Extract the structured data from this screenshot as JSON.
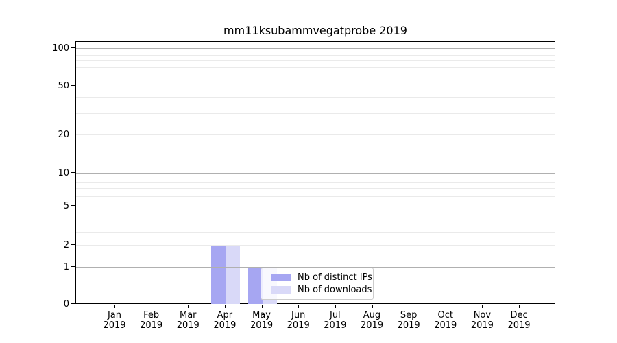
{
  "chart_data": {
    "type": "bar",
    "title": "mm11ksubammvegatprobe 2019",
    "categories": [
      "Jan",
      "Feb",
      "Mar",
      "Apr",
      "May",
      "Jun",
      "Jul",
      "Aug",
      "Sep",
      "Oct",
      "Nov",
      "Dec"
    ],
    "category_year": "2019",
    "series": [
      {
        "name": "Nb of distinct IPs",
        "color": "#a6a6f2",
        "values": [
          0,
          0,
          0,
          2,
          1,
          0,
          0,
          0,
          0,
          0,
          0,
          0
        ]
      },
      {
        "name": "Nb of downloads",
        "color": "#d9d9f8",
        "values": [
          0,
          0,
          0,
          2,
          1,
          0,
          0,
          0,
          0,
          0,
          0,
          0
        ]
      }
    ],
    "yaxis": {
      "scale": "symlog",
      "range": [
        0,
        100
      ],
      "ticks": [
        100,
        50,
        20,
        10,
        5,
        2,
        1,
        0
      ]
    },
    "grid": {
      "major": [
        1,
        10,
        100
      ],
      "minor": [
        2,
        3,
        4,
        5,
        6,
        7,
        8,
        9,
        20,
        30,
        40,
        50,
        60,
        70,
        80,
        90
      ]
    },
    "legend": {
      "position": "lower-center",
      "entries": [
        "Nb of distinct IPs",
        "Nb of downloads"
      ]
    }
  }
}
